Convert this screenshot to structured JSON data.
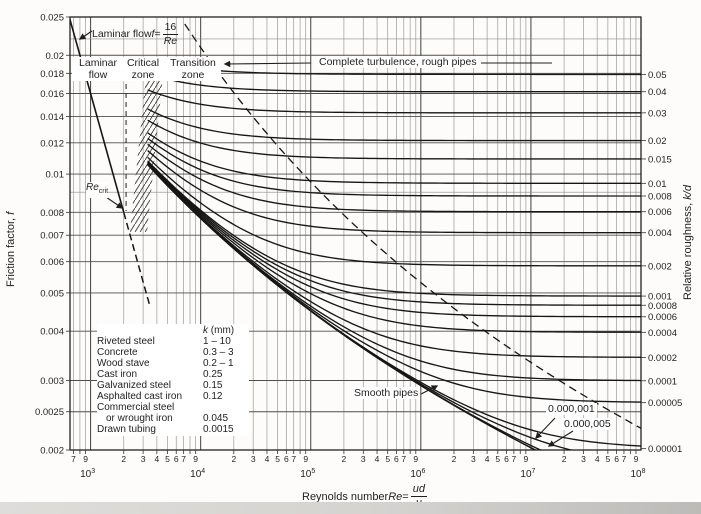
{
  "chart_data": {
    "type": "line",
    "x_axis": {
      "label_text": "Reynolds number ",
      "label_sym": "Re",
      "label_eq": " = ",
      "label_num": "ud",
      "label_den": "ν",
      "scale": "log",
      "range": [
        650,
        100000000
      ],
      "major_ticks": [
        {
          "t": "10",
          "e": "3",
          "v": 1000
        },
        {
          "t": "10",
          "e": "4",
          "v": 10000
        },
        {
          "t": "10",
          "e": "5",
          "v": 100000
        },
        {
          "t": "10",
          "e": "6",
          "v": 1000000
        },
        {
          "t": "10",
          "e": "7",
          "v": 10000000
        },
        {
          "t": "10",
          "e": "8",
          "v": 100000000
        }
      ],
      "minor_tick_labels": [
        {
          "t": "7",
          "v": 700
        },
        {
          "t": "9",
          "v": 900
        },
        {
          "t": "2",
          "v": 2000
        },
        {
          "t": "3",
          "v": 3000
        },
        {
          "t": "4",
          "v": 4000
        },
        {
          "t": "5",
          "v": 5000
        },
        {
          "t": "6",
          "v": 6000
        },
        {
          "t": "7",
          "v": 7000
        },
        {
          "t": "9",
          "v": 9000
        },
        {
          "t": "2",
          "v": 20000
        },
        {
          "t": "3",
          "v": 30000
        },
        {
          "t": "4",
          "v": 40000
        },
        {
          "t": "5",
          "v": 50000
        },
        {
          "t": "6",
          "v": 60000
        },
        {
          "t": "7",
          "v": 70000
        },
        {
          "t": "9",
          "v": 90000
        },
        {
          "t": "2",
          "v": 200000
        },
        {
          "t": "3",
          "v": 300000
        },
        {
          "t": "4",
          "v": 400000
        },
        {
          "t": "5",
          "v": 500000
        },
        {
          "t": "6",
          "v": 600000
        },
        {
          "t": "7",
          "v": 700000
        },
        {
          "t": "9",
          "v": 900000
        },
        {
          "t": "2",
          "v": 2000000
        },
        {
          "t": "3",
          "v": 3000000
        },
        {
          "t": "4",
          "v": 4000000
        },
        {
          "t": "5",
          "v": 5000000
        },
        {
          "t": "6",
          "v": 6000000
        },
        {
          "t": "7",
          "v": 7000000
        },
        {
          "t": "9",
          "v": 9000000
        },
        {
          "t": "2",
          "v": 20000000
        },
        {
          "t": "3",
          "v": 30000000
        },
        {
          "t": "4",
          "v": 40000000
        },
        {
          "t": "5",
          "v": 50000000
        },
        {
          "t": "6",
          "v": 60000000
        },
        {
          "t": "7",
          "v": 70000000
        },
        {
          "t": "9",
          "v": 90000000
        }
      ]
    },
    "y_axis_left": {
      "label_text": "Friction factor, ",
      "label_sym": "f",
      "scale": "log",
      "range": [
        0.002,
        0.025
      ],
      "ticks": [
        {
          "t": "0.025",
          "v": 0.025
        },
        {
          "t": "0.02",
          "v": 0.02
        },
        {
          "t": "0.018",
          "v": 0.018
        },
        {
          "t": "0.016",
          "v": 0.016
        },
        {
          "t": "0.014",
          "v": 0.014
        },
        {
          "t": "0.012",
          "v": 0.012
        },
        {
          "t": "0.01",
          "v": 0.01
        },
        {
          "t": "0.008",
          "v": 0.008
        },
        {
          "t": "0.007",
          "v": 0.007
        },
        {
          "t": "0.006",
          "v": 0.006
        },
        {
          "t": "0.005",
          "v": 0.005
        },
        {
          "t": "0.004",
          "v": 0.004
        },
        {
          "t": "0.003",
          "v": 0.003
        },
        {
          "t": "0.0025",
          "v": 0.0025
        },
        {
          "t": "0.002",
          "v": 0.002
        }
      ],
      "unlabeled_gridlines": [
        0.022,
        0.009
      ]
    },
    "y_axis_right": {
      "label_text": "Relative roughness, ",
      "label_sym": "k/d",
      "ticks": [
        {
          "t": "0.05",
          "v": 0.05
        },
        {
          "t": "0.04",
          "v": 0.04
        },
        {
          "t": "0.03",
          "v": 0.03
        },
        {
          "t": "0.02",
          "v": 0.02
        },
        {
          "t": "0.015",
          "v": 0.015
        },
        {
          "t": "0.01",
          "v": 0.01
        },
        {
          "t": "0.008",
          "v": 0.008
        },
        {
          "t": "0.006",
          "v": 0.006
        },
        {
          "t": "0.004",
          "v": 0.004
        },
        {
          "t": "0.002",
          "v": 0.002
        },
        {
          "t": "0.001",
          "v": 0.001
        },
        {
          "t": "0.0008",
          "v": 0.0008
        },
        {
          "t": "0.0006",
          "v": 0.0006
        },
        {
          "t": "0.0004",
          "v": 0.0004
        },
        {
          "t": "0.0002",
          "v": 0.0002
        },
        {
          "t": "0.0001",
          "v": 0.0001
        },
        {
          "t": "0.00005",
          "v": 5e-05
        },
        {
          "t": "0.00001",
          "v": 1e-05
        }
      ]
    },
    "series": {
      "laminar": {
        "formula": "f = 16/Re",
        "re_solid": [
          640,
          2000
        ],
        "re_dashed": [
          2000,
          3460
        ]
      },
      "smooth": {
        "formula": "1/sqrt(f) = 4 log10(Re sqrt(f)) - 0.4",
        "re_range": [
          3300,
          100000000
        ]
      },
      "colebrook": {
        "formula": "1/sqrt(f) = -4 log10((k/d)/3.7 + 1.255/(Re sqrt(f)))",
        "relative_roughness_values": [
          0.05,
          0.04,
          0.03,
          0.02,
          0.015,
          0.01,
          0.008,
          0.006,
          0.004,
          0.002,
          0.001,
          0.0008,
          0.0006,
          0.0004,
          0.0002,
          0.0001,
          5e-05,
          1e-05,
          5e-06,
          1e-06
        ]
      },
      "rough_turbulence_boundary": {
        "style": "dashed",
        "formula": "Re = 100/(sqrt(f) (k/d))",
        "kd_range": [
          0.09,
          1.2e-05
        ]
      }
    },
    "annotations": {
      "laminar_eq_prefix": "Laminar flow ",
      "laminar_eq_sym": "f",
      "laminar_eq_equals": " = ",
      "laminar_eq_num": "16",
      "laminar_eq_den": "Re",
      "zone_laminar_1": "Laminar",
      "zone_laminar_2": "flow",
      "zone_critical_1": "Critical",
      "zone_critical_2": "zone",
      "zone_transition_1": "Transition",
      "zone_transition_2": "zone",
      "complete_turbulence": "Complete turbulence, rough pipes",
      "re_crit_main": "Re",
      "re_crit_sub": "crit",
      "smooth_pipes": "Smooth pipes",
      "curve_label_000001": "0.000,001",
      "curve_label_000005": "0.000,005"
    }
  },
  "legend": {
    "header_sym": "k",
    "header_rest": " (mm)",
    "rows": [
      {
        "material": "Riveted steel",
        "k": "1 – 10"
      },
      {
        "material": "Concrete",
        "k": "0.3 – 3"
      },
      {
        "material": "Wood stave",
        "k": "0.2 – 1"
      },
      {
        "material": "Cast iron",
        "k": "0.25"
      },
      {
        "material": "Galvanized steel",
        "k": "0.15"
      },
      {
        "material": "Asphalted cast iron",
        "k": "0.12"
      },
      {
        "material": "Commercial steel",
        "k": ""
      },
      {
        "material": "or wrought iron",
        "k": "0.045"
      },
      {
        "material": "Drawn tubing",
        "k": "0.0015"
      }
    ]
  },
  "colors": {
    "ink": "#1f1f1f",
    "curve": "#161616",
    "grid_minor": "#9b9b9b",
    "grid_major": "#3f3f3f",
    "grid_labeled": "#4f4f4f",
    "paper": "#ffffff"
  }
}
